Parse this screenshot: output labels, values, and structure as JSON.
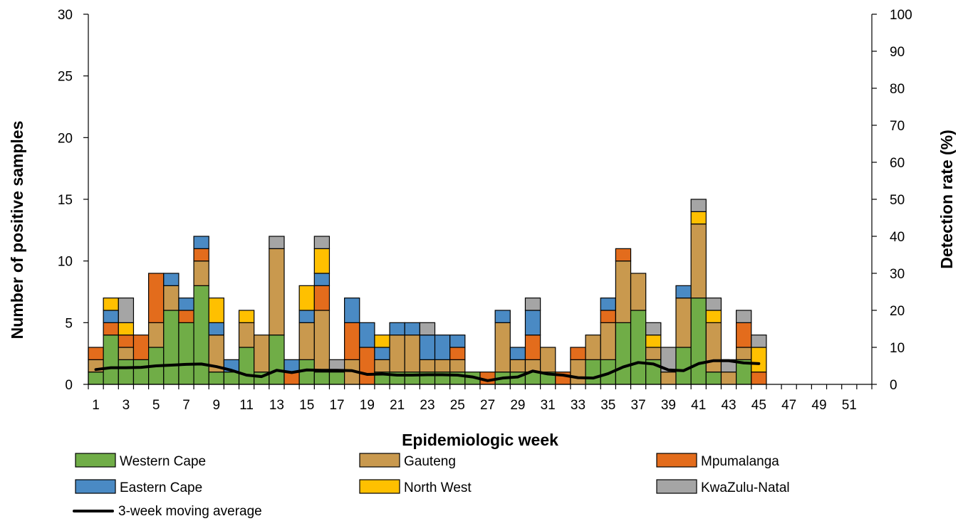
{
  "chart_data": {
    "type": "bar",
    "stacked": true,
    "xlabel": "Epidemiologic week",
    "ylabel": "Number of positive samples",
    "y2label": "Detection rate (%)",
    "ylim": [
      0,
      30
    ],
    "y2lim": [
      0,
      100
    ],
    "y_ticks": [
      "0",
      "5",
      "10",
      "15",
      "20",
      "25",
      "30"
    ],
    "y2_ticks": [
      "0",
      "10",
      "20",
      "30",
      "40",
      "50",
      "60",
      "70",
      "80",
      "90",
      "100"
    ],
    "x_tick_labels": [
      "1",
      "3",
      "5",
      "7",
      "9",
      "11",
      "13",
      "15",
      "17",
      "19",
      "21",
      "23",
      "25",
      "27",
      "29",
      "31",
      "33",
      "35",
      "37",
      "39",
      "41",
      "43",
      "45",
      "47",
      "49",
      "51"
    ],
    "grid": false,
    "legend_position": "bottom",
    "categories": [
      "1",
      "2",
      "3",
      "4",
      "5",
      "6",
      "7",
      "8",
      "9",
      "10",
      "11",
      "12",
      "13",
      "14",
      "15",
      "16",
      "17",
      "18",
      "19",
      "20",
      "21",
      "22",
      "23",
      "24",
      "25",
      "26",
      "27",
      "28",
      "29",
      "30",
      "31",
      "32",
      "33",
      "34",
      "35",
      "36",
      "37",
      "38",
      "39",
      "40",
      "41",
      "42",
      "43",
      "44",
      "45",
      "46",
      "47",
      "48",
      "49",
      "50",
      "51",
      "52"
    ],
    "series": [
      {
        "name": "Western Cape",
        "color": "#70AD47",
        "values": [
          1,
          4,
          2,
          2,
          3,
          6,
          5,
          8,
          1,
          1,
          3,
          1,
          4,
          0,
          2,
          1,
          1,
          0,
          0,
          1,
          1,
          1,
          1,
          1,
          1,
          1,
          0,
          1,
          1,
          1,
          1,
          0,
          0,
          2,
          2,
          5,
          6,
          2,
          0,
          3,
          7,
          1,
          0,
          2,
          0,
          0,
          0,
          0,
          0,
          0,
          0,
          0
        ]
      },
      {
        "name": "Gauteng",
        "color": "#C9994E",
        "values": [
          1,
          0,
          1,
          0,
          2,
          2,
          0,
          2,
          3,
          0,
          2,
          3,
          7,
          0,
          3,
          5,
          0,
          2,
          0,
          1,
          3,
          3,
          1,
          1,
          1,
          0,
          0,
          4,
          1,
          1,
          2,
          0,
          2,
          2,
          3,
          5,
          3,
          1,
          1,
          4,
          6,
          4,
          1,
          1,
          0,
          0,
          0,
          0,
          0,
          0,
          0,
          0
        ]
      },
      {
        "name": "Mpumalanga",
        "color": "#E36C1C",
        "values": [
          1,
          1,
          1,
          2,
          4,
          0,
          1,
          1,
          0,
          0,
          0,
          0,
          0,
          1,
          0,
          2,
          0,
          3,
          3,
          0,
          0,
          0,
          0,
          0,
          1,
          0,
          1,
          0,
          0,
          2,
          0,
          1,
          1,
          0,
          1,
          1,
          0,
          0,
          0,
          0,
          0,
          0,
          0,
          2,
          1,
          0,
          0,
          0,
          0,
          0,
          0,
          0
        ]
      },
      {
        "name": "Eastern Cape",
        "color": "#4A8AC4",
        "values": [
          0,
          1,
          0,
          0,
          0,
          1,
          1,
          1,
          1,
          1,
          0,
          0,
          0,
          1,
          1,
          1,
          0,
          2,
          2,
          1,
          1,
          1,
          2,
          2,
          1,
          0,
          0,
          1,
          1,
          2,
          0,
          0,
          0,
          0,
          1,
          0,
          0,
          0,
          0,
          1,
          0,
          0,
          0,
          0,
          0,
          0,
          0,
          0,
          0,
          0,
          0,
          0
        ]
      },
      {
        "name": "North West",
        "color": "#FFC000",
        "values": [
          0,
          1,
          1,
          0,
          0,
          0,
          0,
          0,
          2,
          0,
          1,
          0,
          0,
          0,
          2,
          2,
          0,
          0,
          0,
          1,
          0,
          0,
          0,
          0,
          0,
          0,
          0,
          0,
          0,
          0,
          0,
          0,
          0,
          0,
          0,
          0,
          0,
          1,
          0,
          0,
          1,
          1,
          0,
          0,
          2,
          0,
          0,
          0,
          0,
          0,
          0,
          0
        ]
      },
      {
        "name": "KwaZulu-Natal",
        "color": "#A5A5A5",
        "values": [
          0,
          0,
          2,
          0,
          0,
          0,
          0,
          0,
          0,
          0,
          0,
          0,
          1,
          0,
          0,
          1,
          1,
          0,
          0,
          0,
          0,
          0,
          1,
          0,
          0,
          0,
          0,
          0,
          0,
          1,
          0,
          0,
          0,
          0,
          0,
          0,
          0,
          1,
          2,
          0,
          1,
          1,
          1,
          1,
          1,
          0,
          0,
          0,
          0,
          0,
          0,
          0
        ]
      }
    ],
    "line_series": {
      "name": "3-week moving average",
      "color": "#000000",
      "axis": "right",
      "values": [
        4,
        4.5,
        4.5,
        4.6,
        5,
        5.2,
        5.4,
        5.5,
        4.8,
        3.8,
        2.5,
        2.1,
        3.8,
        3.2,
        3.9,
        3.8,
        3.8,
        3.7,
        2.7,
        2.8,
        2.5,
        2.5,
        2.6,
        2.6,
        2.5,
        2,
        1,
        1.7,
        2,
        3.6,
        2.8,
        2.5,
        1.8,
        1.7,
        2.9,
        4.7,
        5.9,
        5.5,
        3.9,
        3.7,
        5.6,
        6.4,
        6.4,
        5.8,
        5.6
      ]
    }
  }
}
